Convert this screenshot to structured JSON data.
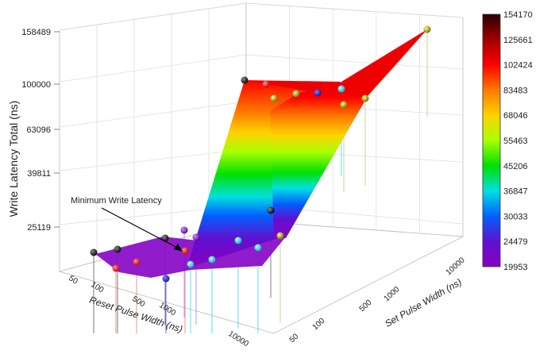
{
  "chart_data": {
    "type": "surface3d",
    "zlabel": "Write Latency Total (ns)",
    "xlabel": "Reset Pulse Width (ns)",
    "ylabel": "Set Pulse Width (ns)",
    "z_ticks": [
      "158489",
      "100000",
      "63096",
      "39811",
      "25119"
    ],
    "x_ticks": [
      "50",
      "100",
      "500",
      "1000",
      "10000"
    ],
    "y_ticks": [
      "50",
      "100",
      "500",
      "1000",
      "10000"
    ],
    "annotation": "Minimum Write Latency",
    "colorbar": {
      "labels": [
        "154170",
        "125661",
        "102424",
        "83483",
        "68046",
        "55463",
        "45206",
        "36847",
        "30033",
        "24479",
        "19953"
      ],
      "colors": [
        "#2a0000",
        "#a00000",
        "#ff0000",
        "#ff7a00",
        "#ffd200",
        "#a8ff00",
        "#00e000",
        "#00e0e0",
        "#0060ff",
        "#6010d0",
        "#8a00c0"
      ]
    },
    "points_note_z_ns": [
      [
        25119,
        25119,
        25800,
        31000,
        100000
      ],
      [
        25119,
        24500,
        26000,
        33000,
        100000
      ],
      [
        24479,
        24000,
        25500,
        36000,
        100000
      ],
      [
        25119,
        25200,
        27000,
        40000,
        158489
      ]
    ]
  }
}
